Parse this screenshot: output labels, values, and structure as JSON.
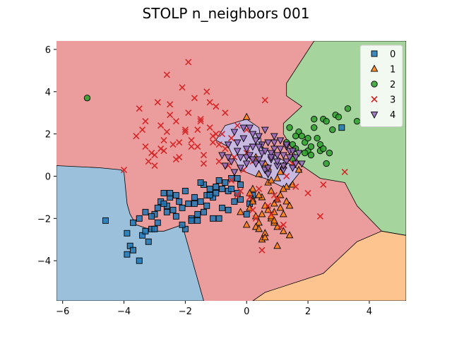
{
  "chart_data": {
    "type": "scatter",
    "title": "STOLP n_neighbors 001",
    "xlabel": "",
    "ylabel": "",
    "xlim": [
      -6.2,
      5.2
    ],
    "ylim": [
      -5.9,
      6.4
    ],
    "xticks": [
      -6,
      -4,
      -2,
      0,
      2,
      4
    ],
    "yticks": [
      -4,
      -2,
      0,
      2,
      4,
      6
    ],
    "xtick_labels": [
      "−6",
      "−4",
      "−2",
      "0",
      "2",
      "4"
    ],
    "ytick_labels": [
      "−4",
      "−2",
      "0",
      "2",
      "4",
      "6"
    ],
    "grid": false,
    "legend_position": "top-right",
    "regions": [
      {
        "class": "0",
        "color": "#9ac0dc",
        "polygon": [
          [
            -6.2,
            0.5
          ],
          [
            -4.8,
            0.4
          ],
          [
            -4.1,
            0.3
          ],
          [
            -4.0,
            0.2
          ],
          [
            -3.9,
            -1.3
          ],
          [
            -3.8,
            -1.8
          ],
          [
            -3.6,
            -2.3
          ],
          [
            -3.0,
            -2.6
          ],
          [
            -2.7,
            -2.6
          ],
          [
            -2.1,
            -2.3
          ],
          [
            -1.4,
            -5.9
          ],
          [
            -6.2,
            -5.9
          ]
        ]
      },
      {
        "class": "2",
        "color": "#a6d49d",
        "polygon": [
          [
            2.2,
            6.4
          ],
          [
            5.2,
            6.4
          ],
          [
            5.2,
            -2.8
          ],
          [
            4.4,
            -2.6
          ],
          [
            3.6,
            -1.4
          ],
          [
            3.2,
            -0.3
          ],
          [
            2.4,
            -0.1
          ],
          [
            1.7,
            0.6
          ],
          [
            1.5,
            1.3
          ],
          [
            1.2,
            2.0
          ],
          [
            1.2,
            2.5
          ],
          [
            1.8,
            3.3
          ],
          [
            1.3,
            3.8
          ],
          [
            1.3,
            4.4
          ],
          [
            2.2,
            6.4
          ]
        ]
      },
      {
        "class": "1",
        "color": "#fdc48f",
        "polygon": [
          [
            5.2,
            -2.8
          ],
          [
            5.2,
            -5.9
          ],
          [
            0.2,
            -5.9
          ],
          [
            0.6,
            -5.5
          ],
          [
            2.5,
            -4.6
          ],
          [
            3.6,
            -3.1
          ],
          [
            4.4,
            -2.6
          ]
        ]
      },
      {
        "class": "4",
        "color": "#c8b9e1",
        "polygon": [
          [
            -1.0,
            1.7
          ],
          [
            -0.7,
            2.4
          ],
          [
            0.0,
            2.7
          ],
          [
            0.4,
            2.3
          ],
          [
            0.5,
            1.4
          ],
          [
            0.9,
            1.0
          ],
          [
            1.6,
            0.4
          ],
          [
            1.8,
            0.3
          ],
          [
            1.3,
            -0.6
          ],
          [
            0.6,
            -0.1
          ],
          [
            0.3,
            0.0
          ],
          [
            -0.2,
            0.3
          ],
          [
            -0.4,
            0.8
          ],
          [
            -0.6,
            1.4
          ]
        ]
      }
    ],
    "background_color": "#eb9c9c",
    "series": [
      {
        "name": "0",
        "marker": "square",
        "color": "#1f77b4",
        "x": [
          -4.6,
          -3.9,
          -3.8,
          -3.9,
          -3.7,
          -3.7,
          -3.5,
          -3.4,
          -3.3,
          -3.2,
          -3.1,
          -3.0,
          -2.9,
          -2.8,
          -2.7,
          -2.6,
          -2.5,
          -2.4,
          -2.3,
          -2.2,
          -2.1,
          -2.0,
          -1.9,
          -1.8,
          -1.7,
          -1.6,
          -1.5,
          -1.4,
          -1.3,
          -1.2,
          -1.1,
          -1.0,
          -0.9,
          -0.8,
          -0.7,
          -0.6,
          -0.5,
          -0.4,
          -0.3,
          -0.2,
          -3.3,
          -3.1,
          -3.0,
          -2.7,
          -2.9,
          -2.5,
          -2.0,
          -1.8,
          -1.5,
          -1.3,
          -1.0,
          -0.8,
          -0.5,
          -0.2,
          0.1,
          3.1,
          -3.5,
          -2.6,
          -1.7,
          -1.2,
          -0.9,
          -2.3,
          -2.1,
          -1.6,
          -1.4,
          -1.1,
          -0.6,
          -0.3,
          0.0,
          0.2
        ],
        "y": [
          -2.1,
          -3.7,
          -3.3,
          -2.7,
          -3.5,
          -2.2,
          -4.0,
          -2.8,
          -2.6,
          -3.1,
          -2.5,
          -1.8,
          -1.5,
          -1.2,
          -0.8,
          -1.4,
          -1.0,
          -1.6,
          -0.9,
          -1.2,
          -1.5,
          -0.7,
          -1.3,
          -2.0,
          -1.0,
          -1.8,
          -1.2,
          -0.4,
          -0.9,
          -0.6,
          -1.0,
          -0.5,
          -0.2,
          -0.6,
          -0.3,
          -0.7,
          -0.1,
          -1.2,
          -0.8,
          -0.4,
          -1.7,
          -1.9,
          -2.5,
          -1.3,
          -2.2,
          -0.8,
          -2.5,
          -2.1,
          -0.3,
          -1.4,
          -0.8,
          -1.5,
          -0.6,
          -1.1,
          -1.3,
          2.3,
          -2.0,
          -1.7,
          -1.3,
          -0.9,
          -2.0,
          -1.9,
          -2.3,
          -2.1,
          -1.7,
          -2.0,
          -1.6,
          -0.1,
          -1.8,
          -0.9
        ]
      },
      {
        "name": "1",
        "marker": "triangle-up",
        "color": "#ff7f0e",
        "x": [
          -0.2,
          0.0,
          0.1,
          0.2,
          0.3,
          0.4,
          0.5,
          0.6,
          0.7,
          0.8,
          0.9,
          1.0,
          1.1,
          1.2,
          1.3,
          1.4,
          0.2,
          0.4,
          0.6,
          0.8,
          1.0,
          1.2,
          0.3,
          0.5,
          0.7,
          0.9,
          1.1,
          0.1,
          0.5,
          0.9,
          1.3,
          1.7,
          0.4,
          0.8,
          1.2,
          0.6,
          1.0,
          0.0,
          0.3,
          0.7,
          1.1,
          1.5,
          0.2,
          0.6,
          1.0,
          0.8,
          1.4,
          1.2,
          0.4,
          0.9
        ],
        "y": [
          -1.7,
          -2.3,
          -1.5,
          -1.1,
          -1.9,
          -2.2,
          -1.0,
          -2.7,
          -1.6,
          -2.0,
          -1.3,
          -2.4,
          -0.9,
          -1.8,
          -0.5,
          -2.8,
          -0.6,
          -0.9,
          -1.4,
          -0.7,
          -1.1,
          -2.6,
          -2.4,
          -1.8,
          -0.3,
          -2.2,
          -1.5,
          -0.8,
          -3.0,
          -1.7,
          -1.2,
          0.3,
          0.1,
          -0.2,
          0.5,
          0.6,
          -0.1,
          2.8,
          0.9,
          0.4,
          0.2,
          -0.4,
          -1.2,
          -2.9,
          -3.3,
          -1.9,
          -1.4,
          -0.6,
          -2.5,
          -2.1
        ]
      },
      {
        "name": "2",
        "marker": "circle",
        "color": "#2ca02c",
        "x": [
          -5.2,
          1.4,
          1.5,
          1.7,
          1.8,
          1.9,
          2.0,
          2.1,
          2.2,
          2.3,
          2.4,
          2.5,
          2.6,
          2.7,
          2.9,
          3.0,
          3.3,
          3.6,
          1.6,
          2.0,
          2.4,
          2.8,
          1.3,
          1.6,
          2.1,
          2.5,
          1.9,
          2.2,
          1.5,
          2.6
        ],
        "y": [
          3.7,
          2.3,
          1.5,
          2.1,
          1.9,
          1.6,
          1.2,
          1.4,
          2.7,
          1.8,
          1.2,
          2.7,
          2.6,
          1.1,
          2.9,
          2.8,
          3.2,
          2.6,
          1.3,
          1.8,
          1.5,
          2.2,
          1.6,
          1.9,
          1.0,
          1.3,
          1.1,
          2.3,
          0.8,
          0.6
        ]
      },
      {
        "name": "3",
        "marker": "x",
        "color": "#d62728",
        "x": [
          -4.0,
          -3.5,
          -3.4,
          -3.3,
          -3.2,
          -3.1,
          -3.0,
          -2.9,
          -2.8,
          -2.7,
          -2.6,
          -2.5,
          -2.4,
          -2.3,
          -2.2,
          -2.1,
          -2.0,
          -1.9,
          -1.8,
          -1.7,
          -1.6,
          -1.5,
          -1.4,
          -1.3,
          -1.2,
          -1.1,
          -1.0,
          -0.9,
          -0.8,
          -0.7,
          -0.6,
          -0.5,
          -0.4,
          -0.3,
          -0.2,
          -0.1,
          0.0,
          0.1,
          0.2,
          0.3,
          0.5,
          0.7,
          0.9,
          1.1,
          1.3,
          1.6,
          2.0,
          2.4,
          3.2,
          -2.5,
          -2.0,
          -1.8,
          -1.5,
          -2.8,
          -3.3,
          -3.6,
          -2.3,
          -1.6,
          -1.2,
          -0.9,
          -2.6,
          -2.2,
          -1.4,
          -1.0,
          -0.5,
          0.4,
          0.8,
          1.0,
          1.2,
          2.5,
          -3.0,
          -2.7,
          -1.9,
          -0.7,
          0.0,
          0.6,
          -0.3,
          -1.1,
          0.2,
          1.5
        ],
        "y": [
          0.3,
          3.2,
          2.2,
          1.4,
          0.7,
          1.1,
          0.5,
          3.5,
          2.4,
          1.2,
          4.8,
          3.4,
          1.5,
          2.6,
          0.9,
          4.2,
          2.2,
          5.4,
          1.7,
          3.7,
          1.4,
          2.6,
          1.0,
          4.0,
          2.3,
          1.6,
          3.3,
          0.7,
          2.0,
          1.3,
          0.5,
          1.8,
          0.9,
          2.4,
          -0.7,
          0.3,
          1.1,
          -1.0,
          0.7,
          -2.0,
          -3.5,
          -1.4,
          -0.9,
          -2.4,
          0.0,
          -0.5,
          -0.8,
          -1.9,
          0.2,
          2.9,
          2.1,
          1.4,
          2.7,
          1.3,
          2.6,
          1.9,
          0.8,
          2.2,
          3.5,
          1.5,
          2.1,
          1.6,
          0.6,
          2.0,
          -0.2,
          -0.6,
          -1.8,
          -1.1,
          -2.3,
          -0.4,
          1.0,
          1.7,
          3.0,
          3.0,
          2.2,
          3.6,
          -0.9,
          1.9,
          -1.6,
          0.6
        ]
      },
      {
        "name": "4",
        "marker": "triangle-down",
        "color": "#9467bd",
        "x": [
          -0.8,
          -0.6,
          -0.5,
          -0.4,
          -0.3,
          -0.2,
          -0.1,
          0.0,
          0.1,
          0.2,
          0.3,
          0.4,
          0.5,
          0.6,
          0.7,
          0.8,
          0.9,
          1.0,
          1.1,
          1.2,
          1.3,
          1.4,
          1.5,
          1.6,
          1.7,
          1.8,
          -0.7,
          -0.3,
          0.1,
          0.5,
          0.9,
          1.3,
          -0.4,
          0.0,
          0.4,
          0.8,
          1.2,
          1.6,
          -0.2,
          0.2,
          0.6,
          1.0,
          1.4,
          0.3,
          0.7,
          1.1,
          -0.6,
          0.5,
          0.9,
          1.5,
          0.0,
          0.4,
          0.8,
          1.2,
          -0.1,
          0.6,
          1.0,
          0.2,
          1.3,
          0.7
        ],
        "y": [
          1.0,
          1.5,
          0.7,
          2.1,
          1.2,
          0.4,
          1.8,
          0.9,
          2.3,
          1.4,
          0.6,
          1.9,
          1.1,
          0.3,
          1.6,
          0.8,
          1.3,
          0.5,
          1.7,
          1.0,
          0.7,
          1.2,
          0.4,
          0.9,
          1.1,
          0.6,
          0.5,
          1.6,
          1.0,
          1.5,
          1.9,
          1.4,
          0.2,
          1.3,
          0.8,
          1.1,
          0.3,
          0.6,
          0.9,
          2.0,
          1.2,
          0.7,
          0.9,
          1.7,
          0.4,
          1.3,
          0.9,
          0.6,
          1.6,
          1.2,
          0.6,
          1.4,
          0.9,
          0.5,
          2.3,
          2.2,
          1.0,
          0.8,
          1.5,
          0.1
        ]
      }
    ]
  }
}
